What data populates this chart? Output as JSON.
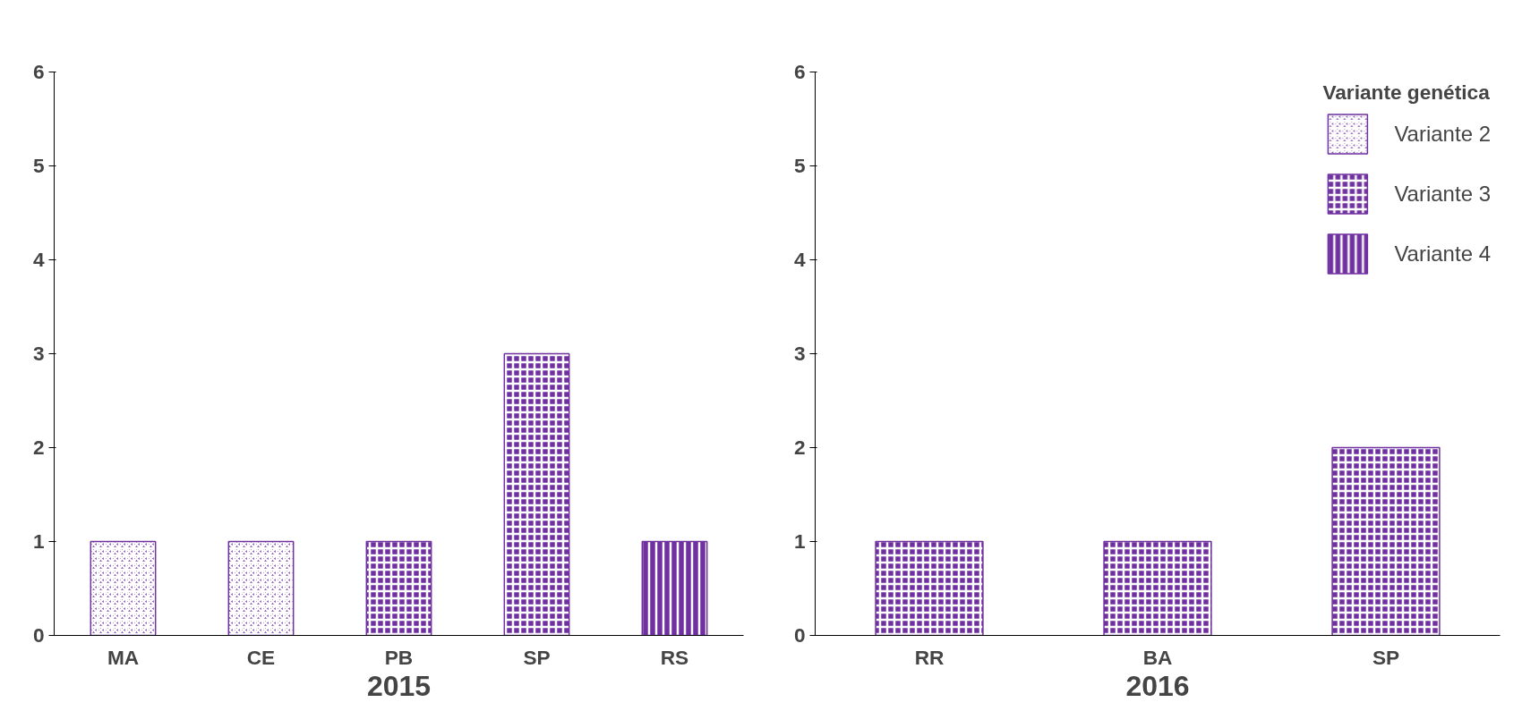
{
  "chart_data": [
    {
      "type": "bar",
      "xlabel": "2015",
      "categories": [
        "MA",
        "CE",
        "PB",
        "SP",
        "RS"
      ],
      "ylim": [
        0,
        6
      ],
      "yticks": [
        0,
        1,
        2,
        3,
        4,
        5,
        6
      ],
      "grid": false,
      "series": [
        {
          "color": "#7030a0",
          "values": [
            1,
            1,
            null,
            null,
            null
          ]
        },
        {
          "color": "#7030a0",
          "values": [
            null,
            null,
            1,
            3,
            null
          ]
        },
        {
          "color": "#7030a0",
          "values": [
            null,
            null,
            null,
            null,
            1
          ]
        }
      ]
    },
    {
      "type": "bar",
      "xlabel": "2016",
      "categories": [
        "RR",
        "BA",
        "SP"
      ],
      "ylim": [
        0,
        6
      ],
      "yticks": [
        0,
        1,
        2,
        3,
        4,
        5,
        6
      ],
      "grid": false,
      "legend": "top right",
      "legend_title": "Variante genética",
      "series": [
        {
          "name": "Variante 2",
          "color": "#7030a0",
          "values": [
            null,
            null,
            null
          ]
        },
        {
          "name": "Variante 3",
          "color": "#7030a0",
          "values": [
            1,
            1,
            2
          ]
        },
        {
          "name": "Variante 4",
          "color": "#7030a0",
          "values": [
            null,
            null,
            null
          ]
        }
      ]
    }
  ]
}
